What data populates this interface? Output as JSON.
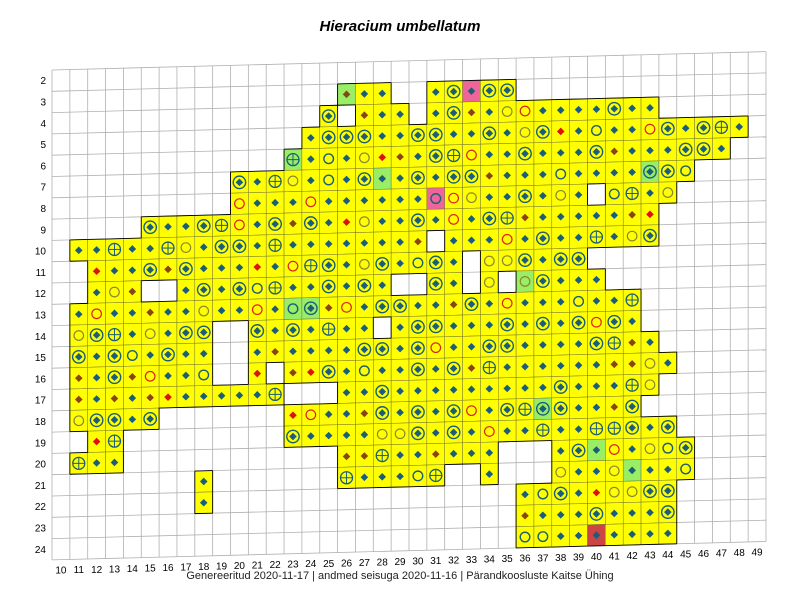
{
  "title": "Hieracium umbellatum",
  "footer": "Genereeritud 2020-11-17  |  andmed seisuga 2020-11-16  |  Pärandkoosluste Kaitse Ühing",
  "grid": {
    "row_labels": [
      "2",
      "3",
      "4",
      "5",
      "6",
      "7",
      "8",
      "9",
      "10",
      "11",
      "12",
      "13",
      "14",
      "15",
      "16",
      "17",
      "18",
      "19",
      "20",
      "21",
      "22",
      "23",
      "24"
    ],
    "col_labels": [
      "10",
      "11",
      "12",
      "13",
      "14",
      "15",
      "16",
      "17",
      "18",
      "19",
      "20",
      "21",
      "22",
      "23",
      "24",
      "25",
      "26",
      "27",
      "28",
      "29",
      "30",
      "31",
      "32",
      "33",
      "34",
      "35",
      "36",
      "37",
      "38",
      "39",
      "40",
      "41",
      "42",
      "43",
      "44",
      "45",
      "46",
      "47",
      "48",
      "49"
    ]
  },
  "colors": {
    "grid_line": "#b0b0b0",
    "occupied_fill": "#ffff00",
    "green_fill": "#99ee66",
    "pink_fill": "#ee6699",
    "red_fill": "#cc4444",
    "border": "#000000",
    "diamond_blue": "#1a5e7a",
    "diamond_brown": "#8b4513",
    "diamond_red": "#dd1111",
    "circle_blue": "#1a5e7a",
    "circle_olive": "#888833",
    "circle_red": "#dd2222"
  },
  "map_data": {
    "row_extents": {
      "3": [
        [
          26,
          35
        ]
      ],
      "4": [
        [
          25,
          43
        ]
      ],
      "5": [
        [
          24,
          48
        ]
      ],
      "6": [
        [
          23,
          47
        ]
      ],
      "7": [
        [
          20,
          45
        ]
      ],
      "8": [
        [
          20,
          44
        ]
      ],
      "9": [
        [
          15,
          43
        ]
      ],
      "10": [
        [
          11,
          43
        ]
      ],
      "11": [
        [
          12,
          39
        ]
      ],
      "12": [
        [
          12,
          40
        ]
      ],
      "13": [
        [
          11,
          42
        ]
      ],
      "14": [
        [
          11,
          42
        ]
      ],
      "15": [
        [
          11,
          43
        ]
      ],
      "16": [
        [
          11,
          44
        ]
      ],
      "17": [
        [
          11,
          43
        ]
      ],
      "18": [
        [
          11,
          15
        ],
        [
          23,
          42
        ]
      ],
      "19": [
        [
          12,
          13
        ],
        [
          23,
          44
        ]
      ],
      "20": [
        [
          11,
          13
        ],
        [
          26,
          45
        ]
      ],
      "21": [
        [
          18,
          18
        ],
        [
          26,
          45
        ]
      ],
      "22": [
        [
          18,
          18
        ],
        [
          36,
          44
        ]
      ],
      "23": [
        [
          36,
          44
        ]
      ],
      "24": [
        [
          36,
          44
        ]
      ]
    },
    "green_cells": [
      [
        26,
        3
      ],
      [
        33,
        12
      ],
      [
        28,
        7
      ],
      [
        23,
        6
      ],
      [
        23,
        13
      ],
      [
        24,
        13
      ],
      [
        22,
        18
      ],
      [
        22,
        19
      ],
      [
        35,
        21
      ],
      [
        43,
        7
      ],
      [
        36,
        12
      ],
      [
        46,
        4
      ],
      [
        40,
        20
      ],
      [
        42,
        21
      ],
      [
        37,
        18
      ]
    ],
    "pink_cells": [
      [
        33,
        3
      ],
      [
        31,
        8
      ]
    ],
    "red_cells": [
      [
        40,
        24
      ]
    ],
    "white_cells": [
      [
        29,
        3
      ],
      [
        30,
        3
      ],
      [
        30,
        4
      ],
      [
        26,
        4
      ],
      [
        31,
        10
      ],
      [
        33,
        11
      ],
      [
        33,
        12
      ],
      [
        35,
        12
      ],
      [
        40,
        8
      ],
      [
        35,
        20
      ],
      [
        36,
        20
      ],
      [
        37,
        20
      ],
      [
        35,
        21
      ],
      [
        36,
        21
      ],
      [
        37,
        21
      ],
      [
        32,
        21
      ],
      [
        33,
        21
      ],
      [
        15,
        12
      ],
      [
        16,
        12
      ],
      [
        19,
        14
      ],
      [
        20,
        14
      ],
      [
        19,
        15
      ],
      [
        20,
        15
      ],
      [
        19,
        16
      ],
      [
        20,
        16
      ],
      [
        22,
        16
      ],
      [
        24,
        17
      ],
      [
        25,
        17
      ],
      [
        23,
        17
      ],
      [
        29,
        12
      ],
      [
        30,
        12
      ],
      [
        28,
        14
      ]
    ]
  },
  "legend": {}
}
